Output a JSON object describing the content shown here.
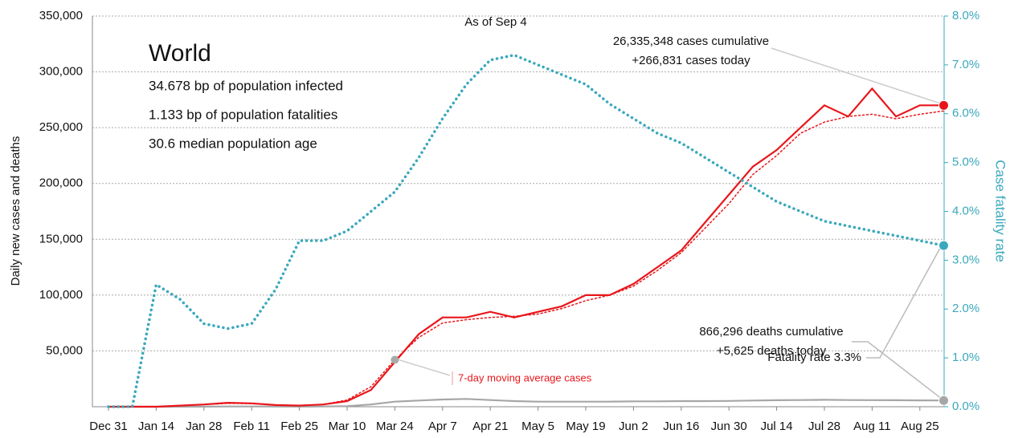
{
  "chart_data": {
    "type": "line",
    "title": "World",
    "subtitle": "As of Sep 4",
    "stats": [
      "34.678 bp of population infected",
      "1.133 bp of population fatalities",
      "30.6 median population age"
    ],
    "y_label": "Daily new cases and deaths",
    "y2_label": "Case fatality rate",
    "annotations": [
      "26,335,348 cases cumulative",
      "+266,831 cases today",
      "Fatality rate 3.3%",
      "866,296 deaths cumulative",
      "+5,625 deaths today",
      "7-day moving average cases"
    ],
    "categories": [
      "Dec 31",
      null,
      "Jan 14",
      null,
      "Jan 28",
      null,
      "Feb 11",
      null,
      "Feb 25",
      null,
      "Mar 10",
      null,
      "Mar 24",
      null,
      "Apr 7",
      null,
      "Apr 21",
      null,
      "May 5",
      null,
      "May 19",
      null,
      "Jun 2",
      null,
      "Jun 16",
      null,
      "Jun 30",
      null,
      "Jul 14",
      null,
      "Jul 28",
      null,
      "Aug 11",
      null,
      "Aug 25",
      null
    ],
    "series": [
      {
        "name": "Daily cases",
        "color": "#e8161b",
        "line_style": "solid",
        "values": [
          0,
          0,
          0,
          1000,
          2000,
          3500,
          3000,
          1500,
          1000,
          2000,
          5000,
          15000,
          40000,
          65000,
          80000,
          80000,
          85000,
          80000,
          85000,
          90000,
          100000,
          100000,
          110000,
          125000,
          140000,
          165000,
          190000,
          215000,
          230000,
          250000,
          270000,
          260000,
          285000,
          260000,
          270000,
          270000
        ]
      },
      {
        "name": "7-day moving average cases",
        "color": "#e8161b",
        "line_style": "dotted",
        "values": [
          0,
          0,
          0,
          800,
          2000,
          3000,
          2800,
          1500,
          1000,
          2000,
          6000,
          18000,
          42000,
          62000,
          75000,
          78000,
          80000,
          81000,
          83000,
          88000,
          95000,
          100000,
          108000,
          122000,
          138000,
          160000,
          182000,
          208000,
          225000,
          245000,
          255000,
          260000,
          262000,
          258000,
          262000,
          265000
        ]
      },
      {
        "name": "Daily deaths",
        "color": "#a6a6a6",
        "line_style": "solid",
        "values": [
          0,
          0,
          0,
          30,
          100,
          200,
          200,
          150,
          100,
          200,
          500,
          2000,
          4500,
          5500,
          6500,
          7000,
          6000,
          5000,
          4500,
          4500,
          4500,
          4500,
          4800,
          4800,
          5000,
          5000,
          5200,
          5500,
          5800,
          6000,
          6200,
          6000,
          5900,
          5800,
          5700,
          5600
        ]
      },
      {
        "name": "Case fatality rate",
        "color": "#3aa8bd",
        "line_style": "dotted",
        "axis": "y2",
        "values": [
          0,
          0,
          2.5,
          2.2,
          1.7,
          1.6,
          1.7,
          2.4,
          3.4,
          3.4,
          3.6,
          4.0,
          4.4,
          5.1,
          5.9,
          6.6,
          7.1,
          7.2,
          7.0,
          6.8,
          6.6,
          6.2,
          5.9,
          5.6,
          5.4,
          5.1,
          4.8,
          4.5,
          4.2,
          4.0,
          3.8,
          3.7,
          3.6,
          3.5,
          3.4,
          3.3
        ]
      }
    ],
    "ylim": [
      0,
      350000
    ],
    "yticks": [
      {
        "value": 50000,
        "label": "50,000"
      },
      {
        "value": 100000,
        "label": "100,000"
      },
      {
        "value": 150000,
        "label": "150,000"
      },
      {
        "value": 200000,
        "label": "200,000"
      },
      {
        "value": 250000,
        "label": "250,000"
      },
      {
        "value": 300000,
        "label": "300,000"
      },
      {
        "value": 350000,
        "label": "350,000"
      }
    ],
    "y2lim": [
      0,
      8
    ],
    "y2ticks": [
      {
        "value": 0,
        "label": "0.0%"
      },
      {
        "value": 1,
        "label": "1.0%"
      },
      {
        "value": 2,
        "label": "2.0%"
      },
      {
        "value": 3,
        "label": "3.0%"
      },
      {
        "value": 4,
        "label": "4.0%"
      },
      {
        "value": 5,
        "label": "5.0%"
      },
      {
        "value": 6,
        "label": "6.0%"
      },
      {
        "value": 7,
        "label": "7.0%"
      },
      {
        "value": 8,
        "label": "8.0%"
      }
    ],
    "grid": true
  }
}
